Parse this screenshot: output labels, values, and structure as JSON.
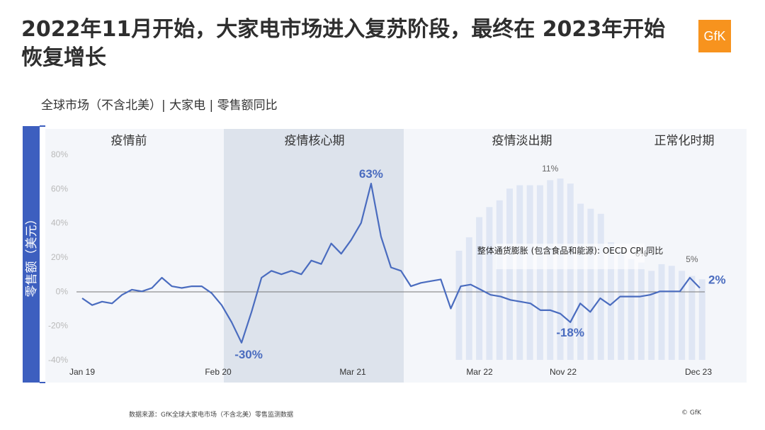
{
  "headline": "2022年11月开始，大家电市场进入复苏阶段，最终在 2023年开始恢复增长",
  "logo_text": "GfK",
  "subtitle": "全球市场（不含北美）| 大家电 | 零售额同比",
  "source": "数据来源：GfK全球大家电市场（不含北美）零售监测数据",
  "copyright": "© GfK",
  "colors": {
    "line": "#4a6cbf",
    "cpi_bar": "#dfe6f4",
    "band_core": "#dde3ec",
    "band_other": "#f4f6fa",
    "ylabel_bg": "#3d5fbf",
    "accent": "#f7931e"
  },
  "chart_data": {
    "type": "line",
    "ylabel": "零售额（美元）",
    "ylim": [
      -40,
      80
    ],
    "yticks": [
      "80%",
      "60%",
      "40%",
      "20%",
      "0%",
      "-20%",
      "-40%"
    ],
    "xticks": [
      "Jan 19",
      "Feb 20",
      "Mar 21",
      "Mar 22",
      "Nov 22",
      "Dec 23"
    ],
    "phases": [
      "疫情前",
      "疫情核心期",
      "疫情淡出期",
      "正常化时期"
    ],
    "series": [
      {
        "values": [
          -4,
          -8,
          -6,
          -7,
          -2,
          1,
          0,
          2,
          8,
          3,
          2,
          3,
          3,
          -1,
          -8,
          -18,
          -30,
          -12,
          8,
          12,
          10,
          12,
          10,
          18,
          16,
          28,
          22,
          30,
          40,
          63,
          32,
          14,
          12,
          3,
          5,
          6,
          7,
          -10,
          3,
          4,
          1,
          -2,
          -3,
          -5,
          -6,
          -7,
          -11,
          -11,
          -13,
          -18,
          -7,
          -12,
          -4,
          -8,
          -3,
          -3,
          -3,
          -2,
          0,
          0,
          0,
          8,
          2
        ]
      },
      {
        "name": "整体通货膨胀 (包含食品和能源): OECD CPI 同比",
        "type": "bar",
        "values": [
          6.5,
          7.3,
          8.5,
          9.1,
          9.5,
          10.2,
          10.4,
          10.4,
          10.4,
          10.7,
          10.8,
          10.5,
          9.3,
          9.0,
          8.7,
          7.0,
          6.5,
          6.0,
          5.8,
          5.3,
          5.7,
          5.6,
          5.3,
          5.0,
          4.8
        ],
        "labels": [
          "11%",
          "6%",
          "5%"
        ]
      }
    ],
    "annotations": [
      "63%",
      "-30%",
      "-18%",
      "2%"
    ]
  }
}
